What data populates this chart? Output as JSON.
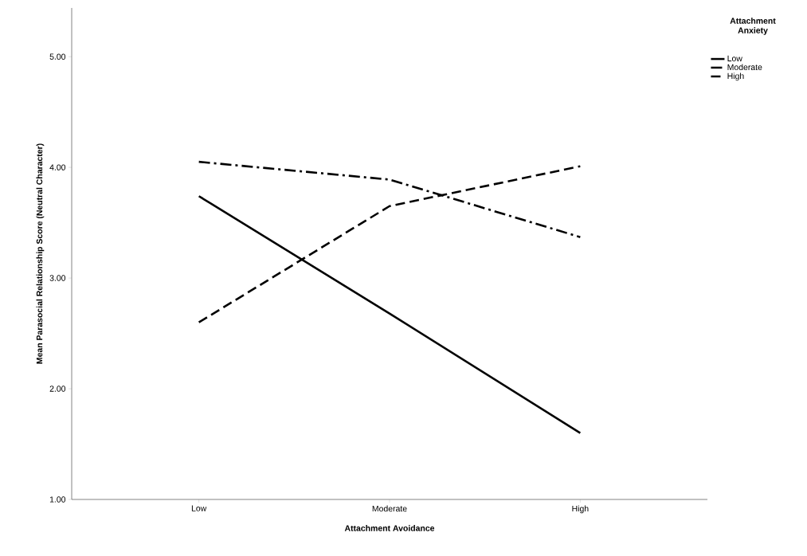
{
  "chart_data": {
    "type": "line",
    "xlabel": "Attachment Avoidance",
    "ylabel": "Mean Parasocial Relationship Score (Neutral Character)",
    "legend_title": "Attachment Anxiety",
    "categories": [
      "Low",
      "Moderate",
      "High"
    ],
    "series": [
      {
        "name": "Low",
        "color": "#000000",
        "line_style": "solid",
        "values": [
          3.74,
          2.68,
          1.6
        ]
      },
      {
        "name": "Moderate",
        "color": "#000000",
        "line_style": "dashdot",
        "values": [
          4.05,
          3.89,
          3.37
        ]
      },
      {
        "name": "High",
        "color": "#000000",
        "line_style": "dashed",
        "values": [
          2.6,
          3.65,
          4.01
        ]
      }
    ],
    "ylim": [
      1,
      5.44
    ],
    "yticks": [
      {
        "value": 1,
        "label": "1.00"
      },
      {
        "value": 2,
        "label": "2.00"
      },
      {
        "value": 3,
        "label": "3.00"
      },
      {
        "value": 4,
        "label": "4.00"
      },
      {
        "value": 5,
        "label": "5.00"
      }
    ],
    "grid": false,
    "legend": "top right",
    "marker": "none"
  }
}
